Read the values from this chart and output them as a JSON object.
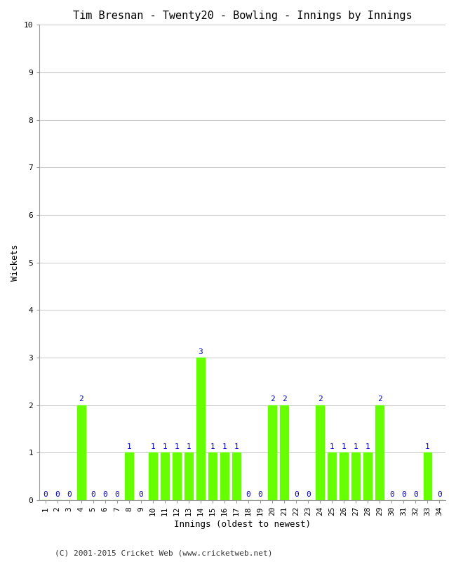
{
  "title": "Tim Bresnan - Twenty20 - Bowling - Innings by Innings",
  "xlabel": "Innings (oldest to newest)",
  "ylabel": "Wickets",
  "footer": "(C) 2001-2015 Cricket Web (www.cricketweb.net)",
  "ylim": [
    0,
    10
  ],
  "yticks": [
    0,
    1,
    2,
    3,
    4,
    5,
    6,
    7,
    8,
    9,
    10
  ],
  "bar_color": "#66ff00",
  "label_color": "#0000cc",
  "innings": [
    1,
    2,
    3,
    4,
    5,
    6,
    7,
    8,
    9,
    10,
    11,
    12,
    13,
    14,
    15,
    16,
    17,
    18,
    19,
    20,
    21,
    22,
    23,
    24,
    25,
    26,
    27,
    28,
    29,
    30,
    31,
    32,
    33,
    34
  ],
  "wickets": [
    0,
    0,
    0,
    2,
    0,
    0,
    0,
    1,
    0,
    1,
    1,
    1,
    1,
    3,
    1,
    1,
    1,
    0,
    0,
    2,
    2,
    0,
    0,
    2,
    1,
    1,
    1,
    1,
    2,
    0,
    0,
    0,
    1,
    0
  ],
  "background_color": "#ffffff",
  "grid_color": "#cccccc",
  "title_fontsize": 11,
  "axis_label_fontsize": 9,
  "tick_fontsize": 8,
  "value_label_fontsize": 8,
  "footer_fontsize": 8
}
